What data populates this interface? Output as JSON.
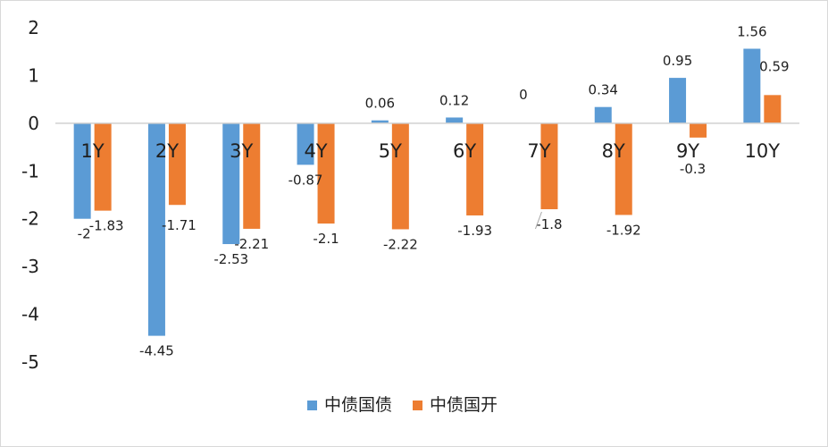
{
  "chart_data": {
    "type": "bar",
    "categories": [
      "1Y",
      "2Y",
      "3Y",
      "4Y",
      "5Y",
      "6Y",
      "7Y",
      "8Y",
      "9Y",
      "10Y"
    ],
    "series": [
      {
        "name": "中债国债",
        "color": "#5b9bd5",
        "values": [
          -2,
          -4.45,
          -2.53,
          -0.87,
          0.06,
          0.12,
          0,
          0.34,
          0.95,
          1.56
        ]
      },
      {
        "name": "中债国开",
        "color": "#ed7d31",
        "values": [
          -1.83,
          -1.71,
          -2.21,
          -2.1,
          -2.22,
          -1.93,
          -1.8,
          -1.92,
          -0.3,
          0.59
        ]
      }
    ],
    "ylim": [
      -5,
      2
    ],
    "yticks": [
      2,
      1,
      0,
      -1,
      -2,
      -3,
      -4,
      -5
    ],
    "grid": false,
    "legend_position": "bottom"
  }
}
